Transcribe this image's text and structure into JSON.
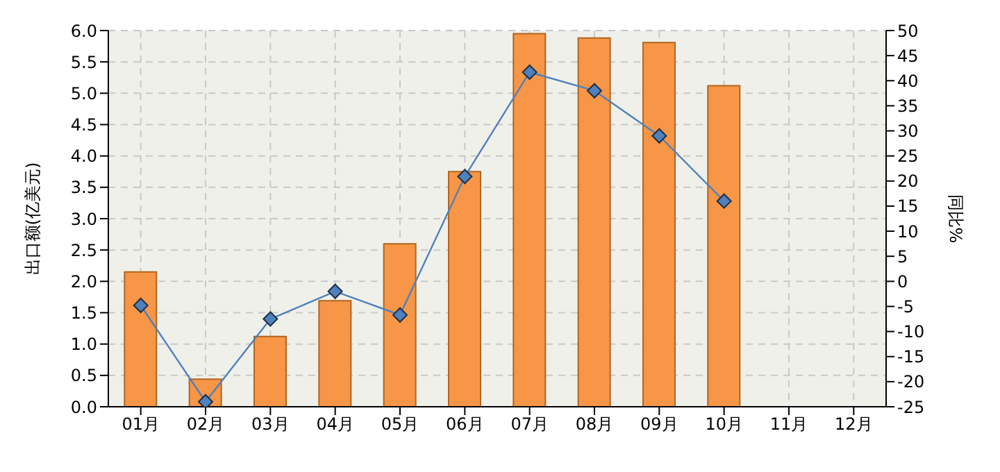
{
  "chart_data": {
    "type": "bar",
    "categories": [
      "01月",
      "02月",
      "03月",
      "04月",
      "05月",
      "06月",
      "07月",
      "08月",
      "09月",
      "10月",
      "11月",
      "12月"
    ],
    "ylabel": "出口额(亿美元)",
    "y2label": "同比%",
    "series": [
      {
        "color": "#f79646",
        "values": [
          2.15,
          0.44,
          1.12,
          1.69,
          2.6,
          3.75,
          5.95,
          5.88,
          5.81,
          5.12,
          null,
          null
        ]
      },
      {
        "type": "line",
        "axis": "y2",
        "color": "#4f81bd",
        "marker": "diamond",
        "values": [
          -4.8,
          -24,
          -7.5,
          -2,
          -6.7,
          20.9,
          41.7,
          38,
          29,
          16,
          null,
          null
        ]
      }
    ],
    "ylim": [
      0,
      6
    ],
    "yticks": [
      {
        "value": 0,
        "label": "0.0"
      },
      {
        "value": 0.5,
        "label": "0.5"
      },
      {
        "value": 1,
        "label": "1.0"
      },
      {
        "value": 1.5,
        "label": "1.5"
      },
      {
        "value": 2,
        "label": "2.0"
      },
      {
        "value": 2.5,
        "label": "2.5"
      },
      {
        "value": 3,
        "label": "3.0"
      },
      {
        "value": 3.5,
        "label": "3.5"
      },
      {
        "value": 4,
        "label": "4.0"
      },
      {
        "value": 4.5,
        "label": "4.5"
      },
      {
        "value": 5,
        "label": "5.0"
      },
      {
        "value": 5.5,
        "label": "5.5"
      },
      {
        "value": 6,
        "label": "6.0"
      }
    ],
    "y2lim": [
      -25,
      50
    ],
    "y2ticks": [
      -25,
      -20,
      -15,
      -10,
      -5,
      0,
      5,
      10,
      15,
      20,
      25,
      30,
      35,
      40,
      45,
      50
    ],
    "grid": true,
    "legend": false
  }
}
